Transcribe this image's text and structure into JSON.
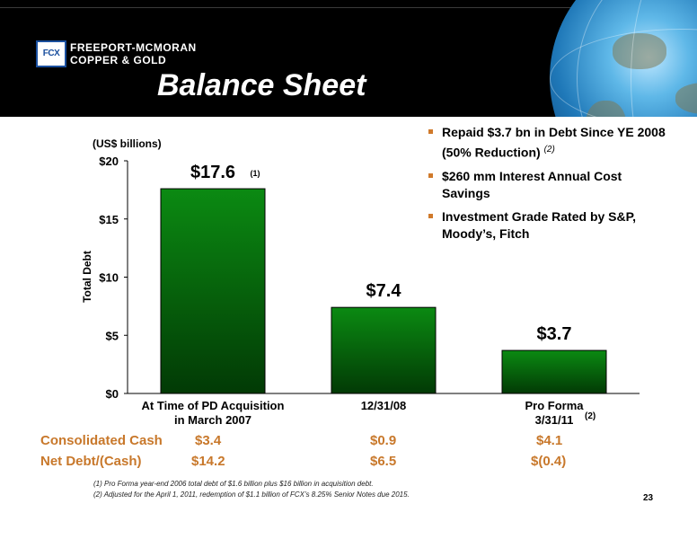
{
  "header": {
    "logo_mark": "FCX",
    "company_line1": "FREEPORT-MCMORAN",
    "company_line2": "COPPER & GOLD",
    "title": "Balance Sheet"
  },
  "bullets": [
    {
      "text": "Repaid $3.7 bn in Debt Since YE 2008 (50% Reduction)",
      "note": "(2)"
    },
    {
      "text": "$260 mm Interest Annual Cost Savings",
      "note": ""
    },
    {
      "text": "Investment Grade Rated by S&P, Moody’s, Fitch",
      "note": ""
    }
  ],
  "chart_data": {
    "type": "bar",
    "unit_label": "(US$ billions)",
    "ylabel": "Total Debt",
    "ylim": [
      0,
      20
    ],
    "yticks": [
      0,
      5,
      10,
      15,
      20
    ],
    "ytick_labels": [
      "$0",
      "$5",
      "$10",
      "$15",
      "$20"
    ],
    "categories": [
      {
        "line1": "At Time of PD Acquisition",
        "line2": "in March 2007",
        "sup": ""
      },
      {
        "line1": "12/31/08",
        "line2": "",
        "sup": ""
      },
      {
        "line1": "Pro Forma",
        "line2": "3/31/11",
        "sup": "(2)"
      }
    ],
    "values": [
      17.6,
      7.4,
      3.7
    ],
    "data_labels": [
      "$17.6",
      "$7.4",
      "$3.7"
    ],
    "data_label_notes": [
      "(1)",
      "",
      ""
    ],
    "bar_color_top": "#0b8a12",
    "bar_color_bottom": "#023a05"
  },
  "summary": {
    "cash_label": "Consolidated Cash",
    "cash_values": [
      "$3.4",
      "$0.9",
      "$4.1"
    ],
    "netdebt_label": "Net Debt/(Cash)",
    "netdebt_values": [
      "$14.2",
      "$6.5",
      "$(0.4)"
    ],
    "color": "#c8782b"
  },
  "footnotes": [
    "(1)   Pro Forma year-end 2006 total debt of $1.6 billion plus $16 billion in acquisition debt.",
    "(2)   Adjusted for the April 1, 2011, redemption of $1.1 billion of FCX’s 8.25% Senior Notes due  2015."
  ],
  "page_number": "23"
}
